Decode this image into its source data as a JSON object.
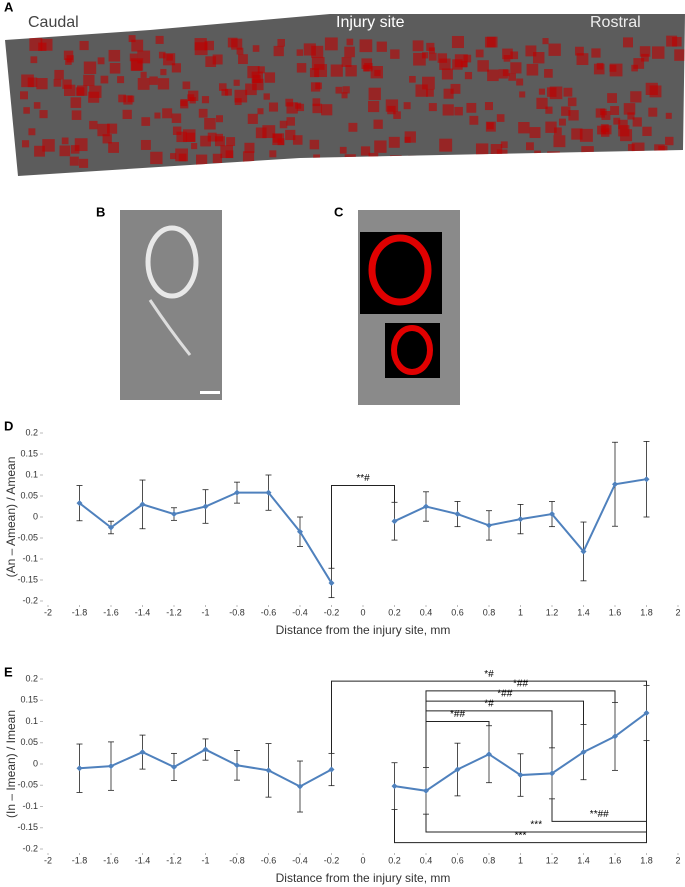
{
  "figure": {
    "panel_labels": [
      "A",
      "B",
      "C"
    ],
    "micrograph_labels": [
      "Caudal",
      "Injury site",
      "Rostral"
    ]
  },
  "chart_data": [
    {
      "type": "line",
      "panel": "D",
      "xlabel": "Distance from the injury site, mm",
      "ylabel": "(An – Amean) / Amean",
      "x": [
        -1.8,
        -1.6,
        -1.4,
        -1.2,
        -1,
        -0.8,
        -0.6,
        -0.4,
        -0.2,
        0,
        0.2,
        0.4,
        0.6,
        0.8,
        1,
        1.2,
        1.4,
        1.6,
        1.8
      ],
      "series": [
        {
          "color": "#4f81bd",
          "values": [
            0.033,
            -0.025,
            0.03,
            0.007,
            0.025,
            0.058,
            0.058,
            -0.035,
            -0.157,
            null,
            -0.01,
            0.025,
            0.007,
            -0.02,
            -0.005,
            0.007,
            -0.082,
            0.078,
            0.09
          ],
          "errors": [
            0.042,
            0.015,
            0.058,
            0.015,
            0.04,
            0.025,
            0.042,
            0.035,
            0.035,
            null,
            0.045,
            0.035,
            0.03,
            0.035,
            0.035,
            0.03,
            0.07,
            0.1,
            0.09
          ]
        }
      ],
      "xlim": [
        -2,
        2
      ],
      "xticks": [
        -2,
        -1.8,
        -1.6,
        -1.4,
        -1.2,
        -1,
        -0.8,
        -0.6,
        -0.4,
        -0.2,
        0,
        0.2,
        0.4,
        0.6,
        0.8,
        1,
        1.2,
        1.4,
        1.6,
        1.8,
        2
      ],
      "ylim": [
        -0.2,
        0.2
      ],
      "yticks": [
        -0.2,
        -0.15,
        -0.1,
        -0.05,
        0,
        0.05,
        0.1,
        0.15,
        0.2
      ],
      "annotations": [
        {
          "text": "**#",
          "x1": -0.2,
          "x2": 0.2,
          "y": 0.075
        }
      ]
    },
    {
      "type": "line",
      "panel": "E",
      "xlabel": "Distance from the injury site, mm",
      "ylabel": "(In – Imean) / Imean",
      "x": [
        -1.8,
        -1.6,
        -1.4,
        -1.2,
        -1,
        -0.8,
        -0.6,
        -0.4,
        -0.2,
        0,
        0.2,
        0.4,
        0.6,
        0.8,
        1,
        1.2,
        1.4,
        1.6,
        1.8
      ],
      "series": [
        {
          "color": "#4f81bd",
          "values": [
            -0.01,
            -0.005,
            0.028,
            -0.007,
            0.034,
            -0.003,
            -0.015,
            -0.053,
            -0.013,
            null,
            -0.052,
            -0.063,
            -0.013,
            0.023,
            -0.026,
            -0.022,
            0.028,
            0.065,
            0.12
          ],
          "errors": [
            0.057,
            0.057,
            0.04,
            0.032,
            0.025,
            0.035,
            0.063,
            0.06,
            0.038,
            null,
            0.055,
            0.055,
            0.062,
            0.067,
            0.05,
            0.06,
            0.065,
            0.08,
            0.065
          ]
        }
      ],
      "xlim": [
        -2,
        2
      ],
      "xticks": [
        -2,
        -1.8,
        -1.6,
        -1.4,
        -1.2,
        -1,
        -0.8,
        -0.6,
        -0.4,
        -0.2,
        0,
        0.2,
        0.4,
        0.6,
        0.8,
        1,
        1.2,
        1.4,
        1.6,
        1.8,
        2
      ],
      "ylim": [
        -0.2,
        0.2
      ],
      "yticks": [
        -0.2,
        -0.15,
        -0.1,
        -0.05,
        0,
        0.05,
        0.1,
        0.15,
        0.2
      ],
      "annotations": [
        {
          "text": "*#",
          "x1": -0.2,
          "x2": 1.8,
          "y": 0.195
        },
        {
          "text": "*##",
          "x1": 0.4,
          "x2": 1.6,
          "y": 0.172
        },
        {
          "text": "*##",
          "x1": 0.4,
          "x2": 1.4,
          "y": 0.148
        },
        {
          "text": "*#",
          "x1": 0.4,
          "x2": 1.2,
          "y": 0.125
        },
        {
          "text": "*##",
          "x1": 0.4,
          "x2": 0.8,
          "y": 0.1
        },
        {
          "text": "**##",
          "x1": 1.2,
          "x2": 1.8,
          "y": -0.135
        },
        {
          "text": "***",
          "x1": 0.4,
          "x2": 1.8,
          "y": -0.16
        },
        {
          "text": "***",
          "x1": 0.2,
          "x2": 1.8,
          "y": -0.185
        }
      ]
    }
  ]
}
